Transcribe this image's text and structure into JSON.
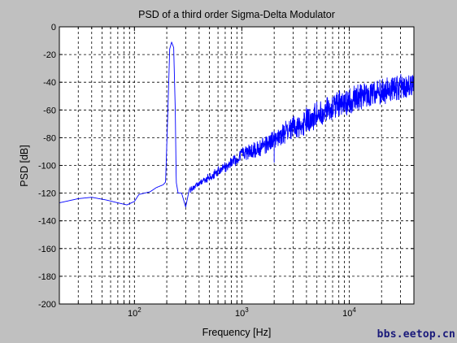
{
  "chart_data": {
    "type": "line",
    "title": "PSD of a third order Sigma-Delta Modulator",
    "xlabel": "Frequency [Hz]",
    "ylabel": "PSD [dB]",
    "xscale": "log",
    "xlim": [
      20,
      40000
    ],
    "ylim": [
      -200,
      0
    ],
    "yticks": [
      0,
      -20,
      -40,
      -60,
      -80,
      -100,
      -120,
      -140,
      -160,
      -180,
      -200
    ],
    "xticks": [
      {
        "value": 100,
        "base": "10",
        "exp": "2"
      },
      {
        "value": 1000,
        "base": "10",
        "exp": "3"
      },
      {
        "value": 10000,
        "base": "10",
        "exp": "4"
      }
    ],
    "grid": true,
    "grid_style": "dashed",
    "series_color": "#0000ff",
    "series": [
      {
        "values_envelope": [
          [
            20,
            -127
          ],
          [
            30,
            -124
          ],
          [
            40,
            -123
          ],
          [
            55,
            -125
          ],
          [
            70,
            -127
          ],
          [
            85,
            -128.5
          ],
          [
            100,
            -126
          ],
          [
            110,
            -121
          ],
          [
            140,
            -119
          ],
          [
            160,
            -116
          ],
          [
            185,
            -114
          ],
          [
            195,
            -112
          ],
          [
            205,
            -60
          ],
          [
            213,
            -16
          ],
          [
            222,
            -11
          ],
          [
            232,
            -15
          ],
          [
            240,
            -60
          ],
          [
            245,
            -112
          ],
          [
            255,
            -120
          ],
          [
            275,
            -120
          ],
          [
            300,
            -130
          ],
          [
            325,
            -117
          ],
          [
            360,
            -114
          ],
          [
            420,
            -110
          ],
          [
            520,
            -106
          ],
          [
            650,
            -100
          ],
          [
            800,
            -95
          ],
          [
            1000,
            -88
          ],
          [
            1400,
            -83
          ],
          [
            2000,
            -75
          ],
          [
            3000,
            -65
          ],
          [
            5000,
            -55
          ],
          [
            8000,
            -47
          ],
          [
            15000,
            -40
          ],
          [
            25000,
            -36
          ],
          [
            40000,
            -34
          ]
        ],
        "noise_floor_notes": [
          {
            "x": 2000,
            "y": -98
          }
        ]
      }
    ]
  },
  "watermark": "bbs.eetop.cn"
}
